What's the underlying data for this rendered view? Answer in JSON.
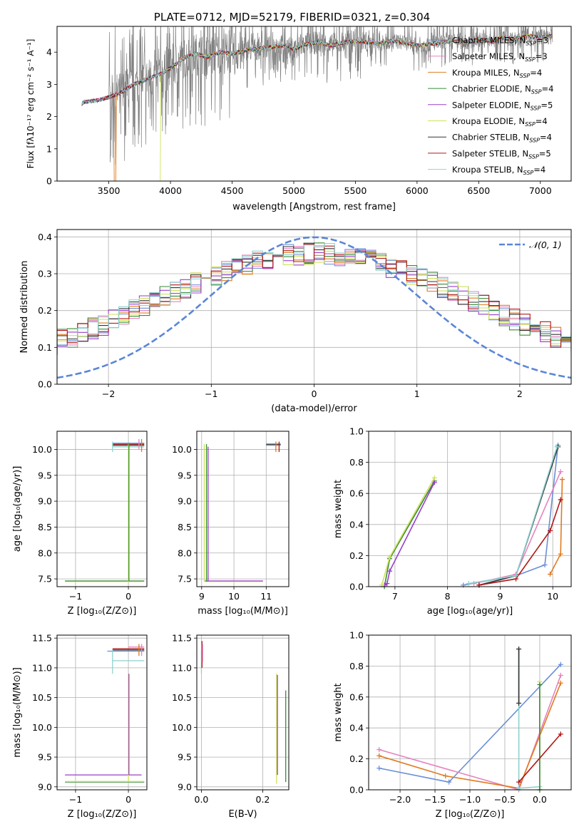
{
  "chart_data": [
    {
      "type": "line",
      "panel": "spectrum",
      "title": "PLATE=0712, MJD=52179, FIBERID=0321, z=0.304",
      "xlabel": "wavelength [Angstrom, rest frame]",
      "ylabel": "Flux [fλ10⁻¹⁷ erg cm⁻² s⁻¹ A⁻¹]",
      "xlim": [
        3080,
        7250
      ],
      "ylim": [
        0,
        4.8
      ],
      "xticks": [
        "3500",
        "4000",
        "4500",
        "5000",
        "5500",
        "6000",
        "6500",
        "7000"
      ],
      "yticks": [
        "0",
        "1",
        "2",
        "3",
        "4"
      ],
      "legend_position": "upper-right",
      "legend": [
        {
          "label": "Chabrier MILES, N",
          "sub": "SSP",
          "tail": "=3",
          "color": "#6a8fd6"
        },
        {
          "label": "Salpeter MILES, N",
          "sub": "SSP",
          "tail": "=3",
          "color": "#e583bf"
        },
        {
          "label": "Kroupa MILES, N",
          "sub": "SSP",
          "tail": "=4",
          "color": "#e07b20"
        },
        {
          "label": "Chabrier ELODIE, N",
          "sub": "SSP",
          "tail": "=4",
          "color": "#3a8a3a"
        },
        {
          "label": "Salpeter ELODIE, N",
          "sub": "SSP",
          "tail": "=5",
          "color": "#9b3fc9"
        },
        {
          "label": "Kroupa ELODIE, N",
          "sub": "SSP",
          "tail": "=4",
          "color": "#cde25a"
        },
        {
          "label": "Chabrier STELIB, N",
          "sub": "SSP",
          "tail": "=4",
          "color": "#333333"
        },
        {
          "label": "Salpeter STELIB, N",
          "sub": "SSP",
          "tail": "=5",
          "color": "#b01818"
        },
        {
          "label": "Kroupa STELIB, N",
          "sub": "SSP",
          "tail": "=4",
          "color": "#8ed2cf"
        }
      ],
      "data_line_color": "#808080",
      "model_anchor": {
        "x": [
          3280,
          3300,
          3400,
          3500,
          3600,
          3700,
          3800,
          3900,
          4000,
          4100,
          4200,
          4300,
          4400,
          4500,
          4600,
          4700,
          4800,
          4900,
          5000,
          5100,
          5200,
          5300,
          5400,
          5500,
          5600,
          5700,
          5800,
          5900,
          6000,
          6100,
          6200,
          6300,
          6400,
          6500,
          6600,
          6700,
          6800,
          6900,
          7000,
          7100
        ],
        "y": [
          2.4,
          2.45,
          2.5,
          2.6,
          2.75,
          3.0,
          3.15,
          3.3,
          3.5,
          3.8,
          3.95,
          3.85,
          4.0,
          3.95,
          4.05,
          4.1,
          4.15,
          4.2,
          4.1,
          4.25,
          4.3,
          4.2,
          4.3,
          4.35,
          4.3,
          4.28,
          4.35,
          4.3,
          4.2,
          4.25,
          4.3,
          4.35,
          4.3,
          4.4,
          4.35,
          4.45,
          4.4,
          4.5,
          4.45,
          4.5
        ]
      }
    },
    {
      "type": "line",
      "panel": "residual-histogram",
      "xlabel": "(data-model)/error",
      "ylabel": "Normed distribution",
      "xlim": [
        -2.5,
        2.5
      ],
      "ylim": [
        0,
        0.42
      ],
      "xticks": [
        "−2",
        "−1",
        "0",
        "1",
        "2"
      ],
      "yticks": [
        "0.0",
        "0.1",
        "0.2",
        "0.3",
        "0.4"
      ],
      "grid": true,
      "legend_position": "upper-right",
      "reference_curve": {
        "label": "𝒩(0, 1)",
        "mean": 0,
        "sigma": 1,
        "color": "#5b86d6"
      },
      "bin_width": 0.1,
      "series_colors": [
        "#6a8fd6",
        "#e583bf",
        "#e07b20",
        "#3a8a3a",
        "#9b3fc9",
        "#cde25a",
        "#333333",
        "#b01818",
        "#8ed2cf"
      ]
    },
    {
      "type": "scatter",
      "panel": "Z-vs-age",
      "xlabel": "Z [log₁₀(Z/Z⊙)]",
      "ylabel": "age  [log₁₀(age/yr)]",
      "xlim": [
        -1.35,
        0.35
      ],
      "ylim": [
        7.35,
        10.35
      ],
      "xticks": [
        "−1",
        "0"
      ],
      "yticks": [
        "7.5",
        "8.0",
        "8.5",
        "9.0",
        "9.5",
        "10.0"
      ],
      "grid": true,
      "hsegments": [
        {
          "x0": -1.2,
          "x1": 0.3,
          "y": 7.45,
          "color": "#cde25a"
        },
        {
          "x0": -1.2,
          "x1": 0.3,
          "y": 7.46,
          "color": "#3a8a3a"
        },
        {
          "x0": -0.3,
          "x1": 0.3,
          "y": 10.08,
          "color": "#333333"
        },
        {
          "x0": -0.3,
          "x1": 0.3,
          "y": 10.1,
          "color": "#b01818"
        },
        {
          "x0": -0.3,
          "x1": 0.3,
          "y": 10.12,
          "color": "#6a8fd6"
        },
        {
          "x0": -0.3,
          "x1": 0.3,
          "y": 10.05,
          "color": "#8ed2cf"
        }
      ],
      "vsegments": [
        {
          "x": 0.0,
          "y0": 7.45,
          "y1": 10.1,
          "color": "#cde25a"
        },
        {
          "x": 0.01,
          "y0": 7.45,
          "y1": 10.1,
          "color": "#3a8a3a"
        },
        {
          "x": 0.2,
          "y0": 10.0,
          "y1": 10.2,
          "color": "#e583bf"
        },
        {
          "x": 0.25,
          "y0": 9.95,
          "y1": 10.2,
          "color": "#e07b20"
        },
        {
          "x": -0.3,
          "y0": 9.95,
          "y1": 10.15,
          "color": "#8ed2cf"
        }
      ]
    },
    {
      "type": "scatter",
      "panel": "mass-vs-age",
      "xlabel": "mass [log₁₀(M/M⊙)]",
      "xlim": [
        8.85,
        11.7
      ],
      "ylim": [
        7.35,
        10.35
      ],
      "xticks": [
        "9",
        "10",
        "11"
      ],
      "yticks": [
        "7.5",
        "8.0",
        "8.5",
        "9.0",
        "9.5",
        "10.0"
      ],
      "grid": true,
      "hsegments": [
        {
          "x0": 9.1,
          "x1": 10.9,
          "y": 7.45,
          "color": "#cde25a"
        },
        {
          "x0": 9.1,
          "x1": 10.9,
          "y": 7.46,
          "color": "#9b3fc9"
        },
        {
          "x0": 11.0,
          "x1": 11.45,
          "y": 10.1,
          "color": "#333333"
        },
        {
          "x0": 11.0,
          "x1": 11.45,
          "y": 10.08,
          "color": "#6a8fd6"
        }
      ],
      "vsegments": [
        {
          "x": 9.08,
          "y0": 7.45,
          "y1": 10.1,
          "color": "#cde25a"
        },
        {
          "x": 9.15,
          "y0": 7.45,
          "y1": 10.1,
          "color": "#3a8a3a"
        },
        {
          "x": 9.2,
          "y0": 7.45,
          "y1": 10.05,
          "color": "#9b3fc9"
        },
        {
          "x": 11.3,
          "y0": 9.95,
          "y1": 10.15,
          "color": "#e07b20"
        },
        {
          "x": 11.4,
          "y0": 9.95,
          "y1": 10.15,
          "color": "#b01818"
        }
      ]
    },
    {
      "type": "line",
      "panel": "age-vs-mass-weight",
      "xlabel": "age  [log₁₀(age/yr)]",
      "ylabel": "mass weight",
      "xlim": [
        6.5,
        10.35
      ],
      "ylim": [
        0,
        1.0
      ],
      "xticks": [
        "7",
        "8",
        "9",
        "10"
      ],
      "yticks": [
        "0.0",
        "0.2",
        "0.4",
        "0.6",
        "0.8",
        "1.0"
      ],
      "grid": true,
      "series": [
        {
          "color": "#6a8fd6",
          "x": [
            8.3,
            9.3,
            9.85,
            10.1
          ],
          "y": [
            0.01,
            0.07,
            0.14,
            0.91
          ]
        },
        {
          "color": "#e583bf",
          "x": [
            8.5,
            9.3,
            10.15
          ],
          "y": [
            0.02,
            0.08,
            0.74
          ]
        },
        {
          "color": "#e07b20",
          "x": [
            9.95,
            10.15,
            10.18
          ],
          "y": [
            0.08,
            0.21,
            0.69
          ]
        },
        {
          "color": "#3a8a3a",
          "x": [
            6.8,
            6.9,
            7.75
          ],
          "y": [
            0.0,
            0.18,
            0.68
          ]
        },
        {
          "color": "#9b3fc9",
          "x": [
            6.8,
            6.85,
            6.9,
            7.75
          ],
          "y": [
            0.01,
            0.02,
            0.1,
            0.67
          ]
        },
        {
          "color": "#cde25a",
          "x": [
            6.75,
            6.9,
            7.75
          ],
          "y": [
            0.01,
            0.19,
            0.7
          ]
        },
        {
          "color": "#333333",
          "x": [
            8.6,
            9.3,
            10.1
          ],
          "y": [
            0.01,
            0.07,
            0.9
          ]
        },
        {
          "color": "#b01818",
          "x": [
            8.6,
            9.3,
            9.95,
            10.15
          ],
          "y": [
            0.01,
            0.05,
            0.36,
            0.56
          ]
        },
        {
          "color": "#8ed2cf",
          "x": [
            8.4,
            9.3,
            10.08
          ],
          "y": [
            0.02,
            0.07,
            0.9
          ]
        }
      ]
    },
    {
      "type": "scatter",
      "panel": "Z-vs-mass",
      "xlabel": "Z [log₁₀(Z/Z⊙)]",
      "ylabel": "mass [log₁₀(M/M⊙)]",
      "xlim": [
        -1.35,
        0.35
      ],
      "ylim": [
        8.95,
        11.55
      ],
      "xticks": [
        "−1",
        "0"
      ],
      "yticks": [
        "9.0",
        "9.5",
        "10.0",
        "10.5",
        "11.0",
        "11.5"
      ],
      "grid": true,
      "hsegments": [
        {
          "x0": -1.2,
          "x1": 0.25,
          "y": 9.2,
          "color": "#9b3fc9"
        },
        {
          "x0": -1.2,
          "x1": 0.3,
          "y": 9.08,
          "color": "#3a8a3a"
        },
        {
          "x0": -1.2,
          "x1": 0.3,
          "y": 9.09,
          "color": "#cde25a"
        },
        {
          "x0": -0.4,
          "x1": 0.3,
          "y": 11.28,
          "color": "#6a8fd6"
        },
        {
          "x0": -0.3,
          "x1": 0.3,
          "y": 11.3,
          "color": "#333333"
        },
        {
          "x0": -0.3,
          "x1": 0.3,
          "y": 11.32,
          "color": "#b01818"
        },
        {
          "x0": -0.3,
          "x1": 0.3,
          "y": 11.12,
          "color": "#8ed2cf"
        },
        {
          "x0": 0.0,
          "x1": 0.3,
          "y": 11.35,
          "color": "#e583bf"
        }
      ],
      "vsegments": [
        {
          "x": 0.0,
          "y0": 9.08,
          "y1": 10.9,
          "color": "#cde25a"
        },
        {
          "x": 0.01,
          "y0": 9.2,
          "y1": 10.9,
          "color": "#9b3fc9"
        },
        {
          "x": -0.3,
          "y0": 10.9,
          "y1": 11.3,
          "color": "#8ed2cf"
        },
        {
          "x": 0.2,
          "y0": 11.2,
          "y1": 11.4,
          "color": "#e07b20"
        },
        {
          "x": 0.25,
          "y0": 11.2,
          "y1": 11.4,
          "color": "#e583bf"
        }
      ]
    },
    {
      "type": "scatter",
      "panel": "EBV-vs-mass",
      "xlabel": "E(B-V)",
      "xlim": [
        -0.015,
        0.285
      ],
      "ylim": [
        8.95,
        11.55
      ],
      "xticks": [
        "0.0",
        "0.2"
      ],
      "yticks": [
        "9.0",
        "9.5",
        "10.0",
        "10.5",
        "11.0",
        "11.5"
      ],
      "grid": true,
      "vsegments": [
        {
          "x": 0.0,
          "y0": 10.9,
          "y1": 11.3,
          "color": "#8ed2cf"
        },
        {
          "x": 0.002,
          "y0": 11.0,
          "y1": 11.45,
          "color": "#b01818"
        },
        {
          "x": 0.004,
          "y0": 11.1,
          "y1": 11.4,
          "color": "#e583bf"
        },
        {
          "x": 0.245,
          "y0": 9.05,
          "y1": 10.9,
          "color": "#cde25a"
        },
        {
          "x": 0.248,
          "y0": 9.2,
          "y1": 10.88,
          "color": "#9b3fc9"
        },
        {
          "x": 0.275,
          "y0": 9.08,
          "y1": 10.62,
          "color": "#3a8a3a"
        }
      ]
    },
    {
      "type": "line",
      "panel": "Z-vs-mass-weight",
      "xlabel": "Z [log₁₀(Z/Z⊙)]",
      "ylabel": "mass weight",
      "xlim": [
        -2.45,
        0.45
      ],
      "ylim": [
        0,
        1.0
      ],
      "xticks": [
        "−2.0",
        "−1.5",
        "−1.0",
        "−0.5",
        "0.0"
      ],
      "yticks": [
        "0.0",
        "0.2",
        "0.4",
        "0.6",
        "0.8",
        "1.0"
      ],
      "grid": true,
      "series": [
        {
          "color": "#6a8fd6",
          "x": [
            -2.3,
            -1.3,
            0.3
          ],
          "y": [
            0.14,
            0.05,
            0.81
          ]
        },
        {
          "color": "#e583bf",
          "x": [
            -2.3,
            -0.3,
            0.3
          ],
          "y": [
            0.26,
            0.0,
            0.74
          ]
        },
        {
          "color": "#e07b20",
          "x": [
            -2.3,
            -1.35,
            -0.3,
            0.3
          ],
          "y": [
            0.22,
            0.09,
            0.01,
            0.69
          ]
        },
        {
          "color": "#8ed2cf",
          "x": [
            -0.3,
            -0.3,
            0.0
          ],
          "y": [
            0.91,
            0.01,
            0.02
          ]
        },
        {
          "color": "#cde25a",
          "x": [
            0.0,
            0.0
          ],
          "y": [
            0.7,
            0.0
          ]
        },
        {
          "color": "#3a8a3a",
          "x": [
            0.0,
            0.0
          ],
          "y": [
            0.68,
            0.0
          ]
        },
        {
          "color": "#333333",
          "x": [
            -0.3,
            -0.3
          ],
          "y": [
            0.91,
            0.56
          ]
        },
        {
          "color": "#b01818",
          "x": [
            -0.3,
            0.3
          ],
          "y": [
            0.05,
            0.36
          ]
        }
      ]
    }
  ]
}
